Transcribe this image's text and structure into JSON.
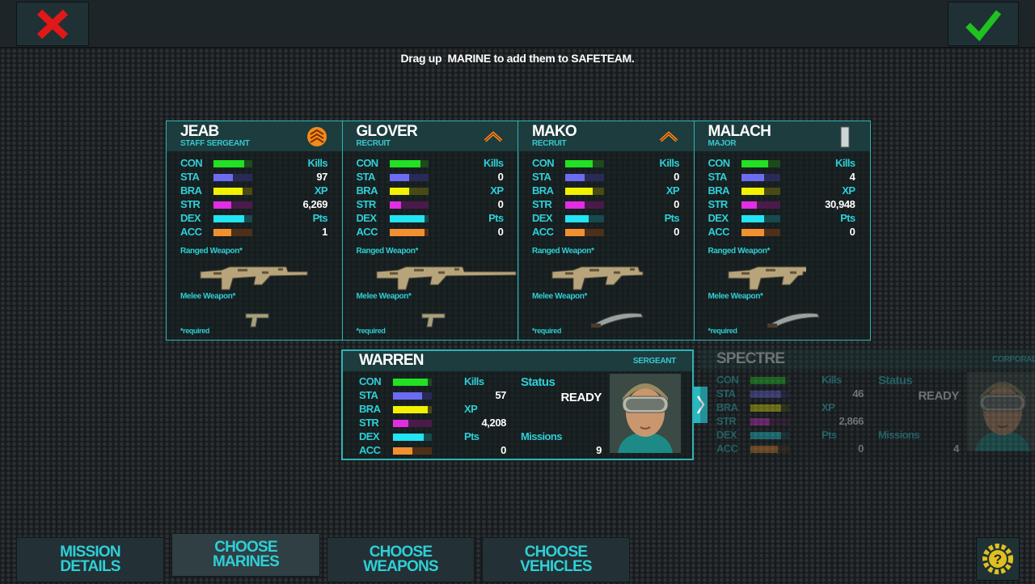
{
  "header": {
    "instruction": "Drag up  MARINE to add them to SAFETEAM."
  },
  "team": [
    {
      "name": "JEAB",
      "rank": "STAFF SERGEANT",
      "stats": [
        {
          "label": "CON",
          "level": 80
        },
        {
          "label": "STA",
          "level": 50
        },
        {
          "label": "BRA",
          "level": 75
        },
        {
          "label": "STR",
          "level": 45
        },
        {
          "label": "DEX",
          "level": 80
        },
        {
          "label": "ACC",
          "level": 45
        }
      ],
      "kills_label": "Kills",
      "kills": "97",
      "xp_label": "XP",
      "xp": "6,269",
      "pts_label": "Pts",
      "pts": "1",
      "ranged_label": "Ranged Weapon*",
      "melee_label": "Melee Weapon*",
      "required": "*required"
    },
    {
      "name": "GLOVER",
      "rank": "RECRUIT",
      "stats": [
        {
          "label": "CON",
          "level": 80
        },
        {
          "label": "STA",
          "level": 50
        },
        {
          "label": "BRA",
          "level": 50
        },
        {
          "label": "STR",
          "level": 30
        },
        {
          "label": "DEX",
          "level": 90
        },
        {
          "label": "ACC",
          "level": 90
        }
      ],
      "kills_label": "Kills",
      "kills": "0",
      "xp_label": "XP",
      "xp": "0",
      "pts_label": "Pts",
      "pts": "0",
      "ranged_label": "Ranged Weapon*",
      "melee_label": "Melee Weapon*",
      "required": "*required"
    },
    {
      "name": "MAKO",
      "rank": "RECRUIT",
      "stats": [
        {
          "label": "CON",
          "level": 70
        },
        {
          "label": "STA",
          "level": 50
        },
        {
          "label": "BRA",
          "level": 70
        },
        {
          "label": "STR",
          "level": 50
        },
        {
          "label": "DEX",
          "level": 60
        },
        {
          "label": "ACC",
          "level": 50
        }
      ],
      "kills_label": "Kills",
      "kills": "0",
      "xp_label": "XP",
      "xp": "0",
      "pts_label": "Pts",
      "pts": "0",
      "ranged_label": "Ranged Weapon*",
      "melee_label": "Melee Weapon*",
      "required": "*required"
    },
    {
      "name": "MALACH",
      "rank": "MAJOR",
      "stats": [
        {
          "label": "CON",
          "level": 70
        },
        {
          "label": "STA",
          "level": 60
        },
        {
          "label": "BRA",
          "level": 60
        },
        {
          "label": "STR",
          "level": 40
        },
        {
          "label": "DEX",
          "level": 60
        },
        {
          "label": "ACC",
          "level": 60
        }
      ],
      "kills_label": "Kills",
      "kills": "4",
      "xp_label": "XP",
      "xp": "30,948",
      "pts_label": "Pts",
      "pts": "0",
      "ranged_label": "Ranged Weapon*",
      "melee_label": "Melee Weapon*",
      "required": "*required"
    }
  ],
  "roster": [
    {
      "name": "WARREN",
      "rank": "SERGEANT",
      "stats": [
        {
          "label": "CON",
          "level": 90
        },
        {
          "label": "STA",
          "level": 75
        },
        {
          "label": "BRA",
          "level": 90
        },
        {
          "label": "STR",
          "level": 40
        },
        {
          "label": "DEX",
          "level": 80
        },
        {
          "label": "ACC",
          "level": 50
        }
      ],
      "kills_label": "Kills",
      "kills": "57",
      "xp_label": "XP",
      "xp": "4,208",
      "pts_label": "Pts",
      "pts": "0",
      "status_label": "Status",
      "status": "READY",
      "missions_label": "Missions",
      "missions": "9"
    },
    {
      "name": "SPECTRE",
      "rank": "CORPORAL",
      "stats": [
        {
          "label": "CON",
          "level": 90
        },
        {
          "label": "STA",
          "level": 80
        },
        {
          "label": "BRA",
          "level": 80
        },
        {
          "label": "STR",
          "level": 50
        },
        {
          "label": "DEX",
          "level": 80
        },
        {
          "label": "ACC",
          "level": 70
        }
      ],
      "kills_label": "Kills",
      "kills": "46",
      "xp_label": "XP",
      "xp": "2,866",
      "pts_label": "Pts",
      "pts": "0",
      "status_label": "Status",
      "status": "READY",
      "missions_label": "Missions",
      "missions": "4"
    }
  ],
  "nav": [
    "MISSION DETAILS",
    "CHOOSE MARINES",
    "CHOOSE WEAPONS",
    "CHOOSE VEHICLES"
  ]
}
